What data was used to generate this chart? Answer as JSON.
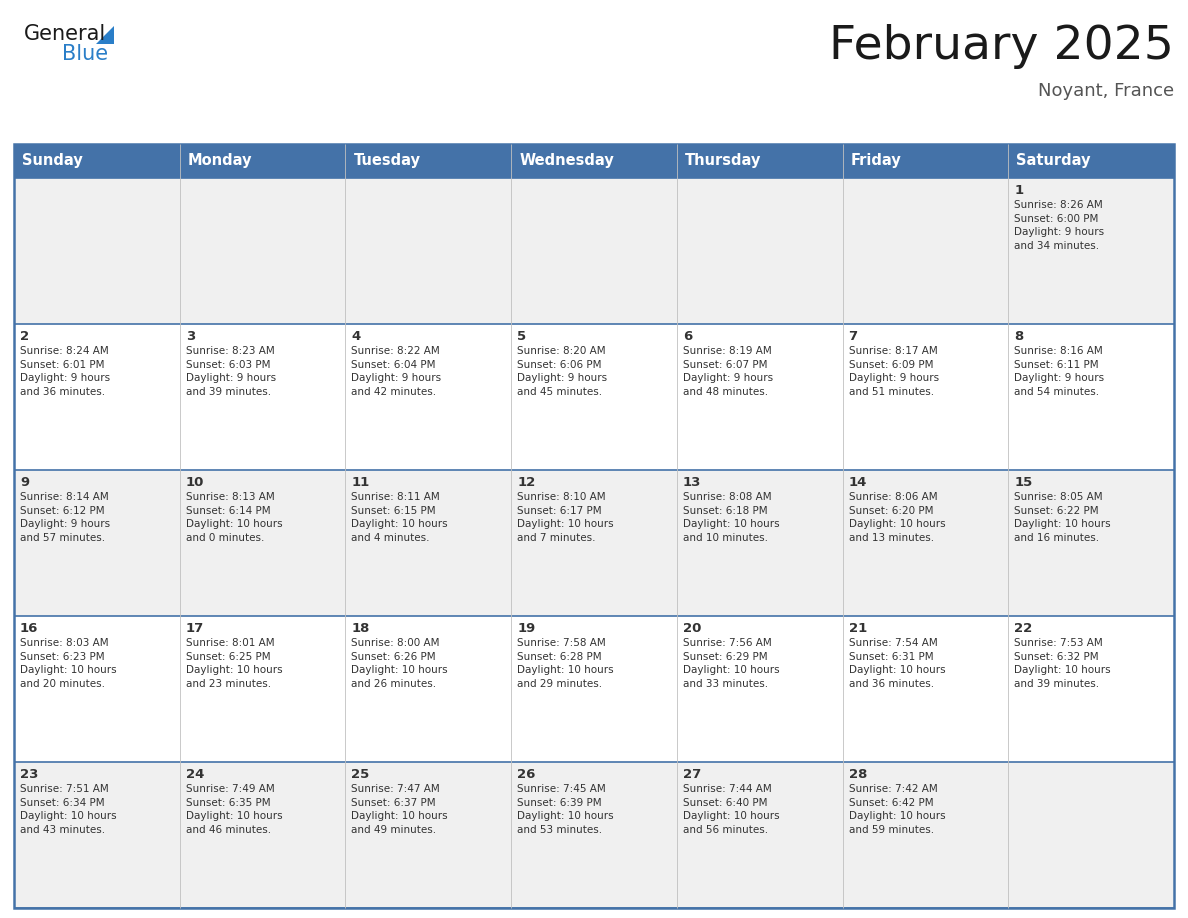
{
  "title": "February 2025",
  "subtitle": "Noyant, France",
  "header_bg_color": "#4472a8",
  "header_text_color": "#ffffff",
  "days_of_week": [
    "Sunday",
    "Monday",
    "Tuesday",
    "Wednesday",
    "Thursday",
    "Friday",
    "Saturday"
  ],
  "cell_bg_even": "#f0f0f0",
  "cell_bg_odd": "#ffffff",
  "day_number_color": "#333333",
  "info_text_color": "#333333",
  "border_color": "#4472a8",
  "title_color": "#1a1a1a",
  "subtitle_color": "#555555",
  "logo_general_color": "#1a1a1a",
  "logo_blue_color": "#2a7ec8",
  "weeks": [
    [
      {
        "day": null,
        "info": null
      },
      {
        "day": null,
        "info": null
      },
      {
        "day": null,
        "info": null
      },
      {
        "day": null,
        "info": null
      },
      {
        "day": null,
        "info": null
      },
      {
        "day": null,
        "info": null
      },
      {
        "day": 1,
        "info": "Sunrise: 8:26 AM\nSunset: 6:00 PM\nDaylight: 9 hours\nand 34 minutes."
      }
    ],
    [
      {
        "day": 2,
        "info": "Sunrise: 8:24 AM\nSunset: 6:01 PM\nDaylight: 9 hours\nand 36 minutes."
      },
      {
        "day": 3,
        "info": "Sunrise: 8:23 AM\nSunset: 6:03 PM\nDaylight: 9 hours\nand 39 minutes."
      },
      {
        "day": 4,
        "info": "Sunrise: 8:22 AM\nSunset: 6:04 PM\nDaylight: 9 hours\nand 42 minutes."
      },
      {
        "day": 5,
        "info": "Sunrise: 8:20 AM\nSunset: 6:06 PM\nDaylight: 9 hours\nand 45 minutes."
      },
      {
        "day": 6,
        "info": "Sunrise: 8:19 AM\nSunset: 6:07 PM\nDaylight: 9 hours\nand 48 minutes."
      },
      {
        "day": 7,
        "info": "Sunrise: 8:17 AM\nSunset: 6:09 PM\nDaylight: 9 hours\nand 51 minutes."
      },
      {
        "day": 8,
        "info": "Sunrise: 8:16 AM\nSunset: 6:11 PM\nDaylight: 9 hours\nand 54 minutes."
      }
    ],
    [
      {
        "day": 9,
        "info": "Sunrise: 8:14 AM\nSunset: 6:12 PM\nDaylight: 9 hours\nand 57 minutes."
      },
      {
        "day": 10,
        "info": "Sunrise: 8:13 AM\nSunset: 6:14 PM\nDaylight: 10 hours\nand 0 minutes."
      },
      {
        "day": 11,
        "info": "Sunrise: 8:11 AM\nSunset: 6:15 PM\nDaylight: 10 hours\nand 4 minutes."
      },
      {
        "day": 12,
        "info": "Sunrise: 8:10 AM\nSunset: 6:17 PM\nDaylight: 10 hours\nand 7 minutes."
      },
      {
        "day": 13,
        "info": "Sunrise: 8:08 AM\nSunset: 6:18 PM\nDaylight: 10 hours\nand 10 minutes."
      },
      {
        "day": 14,
        "info": "Sunrise: 8:06 AM\nSunset: 6:20 PM\nDaylight: 10 hours\nand 13 minutes."
      },
      {
        "day": 15,
        "info": "Sunrise: 8:05 AM\nSunset: 6:22 PM\nDaylight: 10 hours\nand 16 minutes."
      }
    ],
    [
      {
        "day": 16,
        "info": "Sunrise: 8:03 AM\nSunset: 6:23 PM\nDaylight: 10 hours\nand 20 minutes."
      },
      {
        "day": 17,
        "info": "Sunrise: 8:01 AM\nSunset: 6:25 PM\nDaylight: 10 hours\nand 23 minutes."
      },
      {
        "day": 18,
        "info": "Sunrise: 8:00 AM\nSunset: 6:26 PM\nDaylight: 10 hours\nand 26 minutes."
      },
      {
        "day": 19,
        "info": "Sunrise: 7:58 AM\nSunset: 6:28 PM\nDaylight: 10 hours\nand 29 minutes."
      },
      {
        "day": 20,
        "info": "Sunrise: 7:56 AM\nSunset: 6:29 PM\nDaylight: 10 hours\nand 33 minutes."
      },
      {
        "day": 21,
        "info": "Sunrise: 7:54 AM\nSunset: 6:31 PM\nDaylight: 10 hours\nand 36 minutes."
      },
      {
        "day": 22,
        "info": "Sunrise: 7:53 AM\nSunset: 6:32 PM\nDaylight: 10 hours\nand 39 minutes."
      }
    ],
    [
      {
        "day": 23,
        "info": "Sunrise: 7:51 AM\nSunset: 6:34 PM\nDaylight: 10 hours\nand 43 minutes."
      },
      {
        "day": 24,
        "info": "Sunrise: 7:49 AM\nSunset: 6:35 PM\nDaylight: 10 hours\nand 46 minutes."
      },
      {
        "day": 25,
        "info": "Sunrise: 7:47 AM\nSunset: 6:37 PM\nDaylight: 10 hours\nand 49 minutes."
      },
      {
        "day": 26,
        "info": "Sunrise: 7:45 AM\nSunset: 6:39 PM\nDaylight: 10 hours\nand 53 minutes."
      },
      {
        "day": 27,
        "info": "Sunrise: 7:44 AM\nSunset: 6:40 PM\nDaylight: 10 hours\nand 56 minutes."
      },
      {
        "day": 28,
        "info": "Sunrise: 7:42 AM\nSunset: 6:42 PM\nDaylight: 10 hours\nand 59 minutes."
      },
      {
        "day": null,
        "info": null
      }
    ]
  ]
}
